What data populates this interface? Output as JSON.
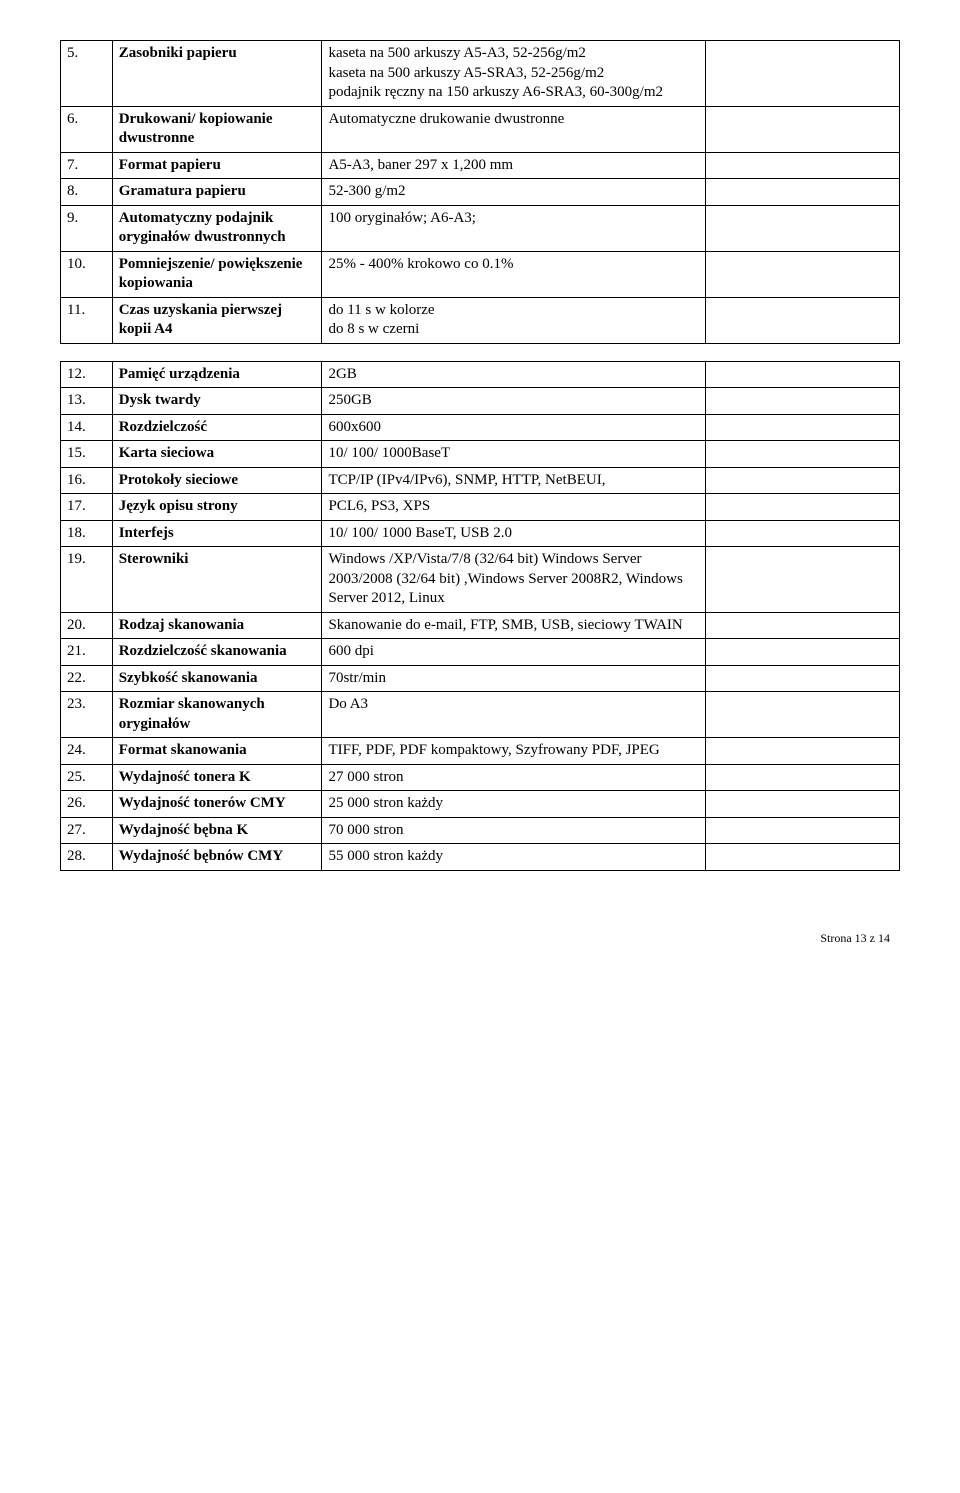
{
  "rows": [
    {
      "num": "5.",
      "label": "Zasobniki papieru",
      "value": "kaseta na 500 arkuszy A5-A3, 52-256g/m2\nkaseta na 500 arkuszy A5-SRA3, 52-256g/m2\npodajnik ręczny na 150 arkuszy A6-SRA3, 60-300g/m2"
    },
    {
      "num": "6.",
      "label": "Drukowani/ kopiowanie dwustronne",
      "value": "Automatyczne drukowanie dwustronne"
    },
    {
      "num": "7.",
      "label": "Format papieru",
      "value": "A5-A3, baner 297 x 1,200 mm"
    },
    {
      "num": "8.",
      "label": "Gramatura papieru",
      "value": "52-300 g/m2"
    },
    {
      "num": "9.",
      "label": "Automatyczny podajnik oryginałów dwustronnych",
      "value": "100 oryginałów; A6-A3;"
    },
    {
      "num": "10.",
      "label": "Pomniejszenie/ powiększenie kopiowania",
      "value": "25% - 400% krokowo co 0.1%"
    },
    {
      "num": "11.",
      "label": "Czas uzyskania pierwszej kopii A4",
      "value": "do 11 s w kolorze\ndo 8 s w czerni"
    }
  ],
  "rows2": [
    {
      "num": "12.",
      "label": "Pamięć urządzenia",
      "value": "2GB"
    },
    {
      "num": "13.",
      "label": "Dysk twardy",
      "value": "250GB"
    },
    {
      "num": "14.",
      "label": "Rozdzielczość",
      "value": "600x600"
    },
    {
      "num": "15.",
      "label": "Karta sieciowa",
      "value": "10/ 100/ 1000BaseT"
    },
    {
      "num": "16.",
      "label": "Protokoły sieciowe",
      "value": "TCP/IP (IPv4/IPv6), SNMP, HTTP, NetBEUI,"
    },
    {
      "num": "17.",
      "label": "Język opisu strony",
      "value": "PCL6, PS3, XPS"
    },
    {
      "num": "18.",
      "label": "Interfejs",
      "value": "10/ 100/ 1000 BaseT, USB 2.0"
    },
    {
      "num": "19.",
      "label": "Sterowniki",
      "value": "Windows /XP/Vista/7/8 (32/64 bit) Windows Server 2003/2008 (32/64 bit) ,Windows Server 2008R2, Windows Server 2012, Linux"
    },
    {
      "num": "20.",
      "label": "Rodzaj skanowania",
      "value": "Skanowanie do e-mail, FTP, SMB, USB, sieciowy TWAIN"
    },
    {
      "num": "21.",
      "label": "Rozdzielczość skanowania",
      "value": "600 dpi"
    },
    {
      "num": "22.",
      "label": "Szybkość skanowania",
      "value": "70str/min"
    },
    {
      "num": "23.",
      "label": "Rozmiar skanowanych oryginałów",
      "value": "Do A3"
    },
    {
      "num": "24.",
      "label": "Format skanowania",
      "value": "TIFF, PDF, PDF kompaktowy, Szyfrowany PDF, JPEG"
    },
    {
      "num": "25.",
      "label": "Wydajność tonera K",
      "value": "27 000 stron"
    },
    {
      "num": "26.",
      "label": "Wydajność tonerów CMY",
      "value": "25 000 stron każdy"
    },
    {
      "num": "27.",
      "label": "Wydajność bębna K",
      "value": "70 000 stron"
    },
    {
      "num": "28.",
      "label": "Wydajność bębnów CMY",
      "value": "55 000 stron każdy"
    }
  ],
  "footer": "Strona 13 z 14"
}
